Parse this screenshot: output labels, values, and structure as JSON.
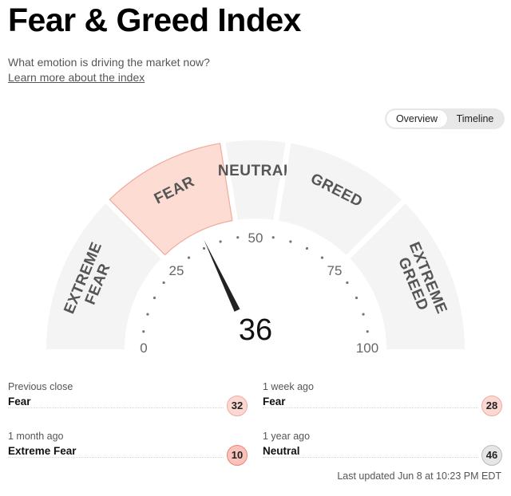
{
  "header": {
    "title": "Fear & Greed Index",
    "subtitle": "What emotion is driving the market now?",
    "learn_more_link": "Learn more about the index"
  },
  "view_toggle": {
    "options": [
      "Overview",
      "Timeline"
    ],
    "selected": "Overview"
  },
  "gauge": {
    "current_value": 36,
    "current_rating": "Fear",
    "range": [
      0,
      100
    ],
    "segments": [
      {
        "label_lines": [
          "EXTREME",
          "FEAR"
        ],
        "from": 0,
        "to": 25,
        "highlighted": false
      },
      {
        "label_lines": [
          "FEAR"
        ],
        "from": 25,
        "to": 45,
        "highlighted": true
      },
      {
        "label_lines": [
          "NEUTRAL"
        ],
        "from": 45,
        "to": 55,
        "highlighted": false
      },
      {
        "label_lines": [
          "GREED"
        ],
        "from": 55,
        "to": 75,
        "highlighted": false
      },
      {
        "label_lines": [
          "EXTREME",
          "GREED"
        ],
        "from": 75,
        "to": 100,
        "highlighted": false
      }
    ],
    "scale_labels": [
      "0",
      "25",
      "50",
      "75",
      "100"
    ],
    "scale_label_values": [
      0,
      25,
      50,
      75,
      100
    ],
    "colors": {
      "segment": "#f4f4f4",
      "highlight_fill": "#fcdcd3",
      "highlight_stroke": "#f2a99c",
      "needle": "#222222"
    }
  },
  "history": [
    {
      "label": "Previous close",
      "rating": "Fear",
      "value": "32",
      "badge": "fear"
    },
    {
      "label": "1 week ago",
      "rating": "Fear",
      "value": "28",
      "badge": "fear"
    },
    {
      "label": "1 month ago",
      "rating": "Extreme Fear",
      "value": "10",
      "badge": "extreme"
    },
    {
      "label": "1 year ago",
      "rating": "Neutral",
      "value": "46",
      "badge": "neutral"
    }
  ],
  "last_updated": "Last updated Jun 8 at 10:23 PM EDT"
}
